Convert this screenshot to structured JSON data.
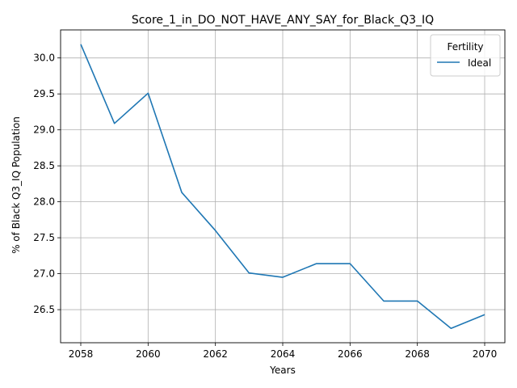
{
  "chart_data": {
    "type": "line",
    "title": "Score_1_in_DO_NOT_HAVE_ANY_SAY_for_Black_Q3_IQ",
    "xlabel": "Years",
    "ylabel": "% of Black Q3_IQ Population",
    "x": [
      2058,
      2059,
      2060,
      2061,
      2062,
      2063,
      2064,
      2065,
      2066,
      2067,
      2068,
      2069,
      2070
    ],
    "series": [
      {
        "name": "Ideal",
        "color": "#1f77b4",
        "values": [
          30.19,
          29.09,
          29.51,
          28.13,
          27.6,
          27.01,
          26.95,
          27.14,
          27.14,
          26.62,
          26.62,
          26.24,
          26.43
        ]
      }
    ],
    "xlim": [
      2057.4,
      2070.6
    ],
    "ylim": [
      26.04,
      30.39
    ],
    "xticks": [
      2058,
      2060,
      2062,
      2064,
      2066,
      2068,
      2070
    ],
    "yticks": [
      26.5,
      27.0,
      27.5,
      28.0,
      28.5,
      29.0,
      29.5,
      30.0
    ],
    "ytick_labels": [
      "26.5",
      "27.0",
      "27.5",
      "28.0",
      "28.5",
      "29.0",
      "29.5",
      "30.0"
    ],
    "grid": true,
    "legend": {
      "title": "Fertility",
      "placement": "top-right"
    }
  }
}
